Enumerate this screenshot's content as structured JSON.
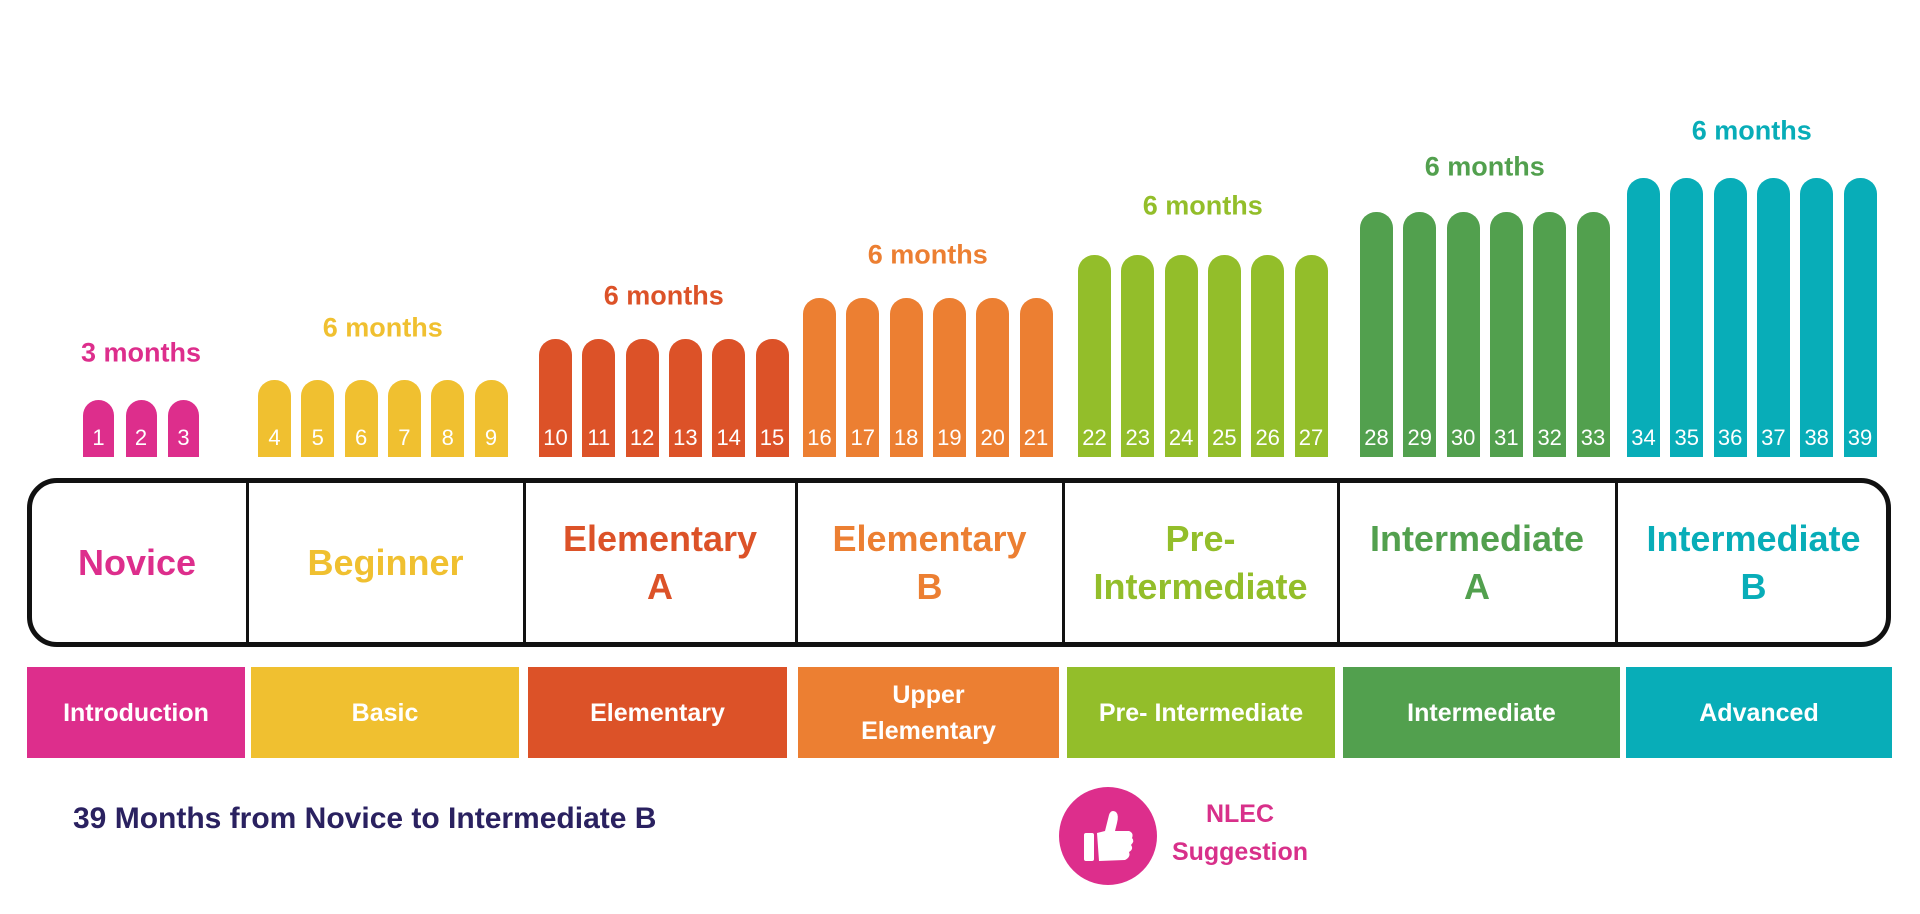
{
  "levels": [
    {
      "name": "Novice",
      "duration": "3 months",
      "stage": "Introduction",
      "lessons": [
        1,
        2,
        3
      ],
      "color": "#dd2e8c"
    },
    {
      "name": "Beginner",
      "duration": "6 months",
      "stage": "Basic",
      "lessons": [
        4,
        5,
        6,
        7,
        8,
        9
      ],
      "color": "#f0c030"
    },
    {
      "name": "Elementary\nA",
      "duration": "6 months",
      "stage": "Elementary",
      "lessons": [
        10,
        11,
        12,
        13,
        14,
        15
      ],
      "color": "#dc5228"
    },
    {
      "name": "Elementary\nB",
      "duration": "6 months",
      "stage": "Upper\nElementary",
      "lessons": [
        16,
        17,
        18,
        19,
        20,
        21
      ],
      "color": "#ec7f32"
    },
    {
      "name": "Pre-\nIntermediate",
      "duration": "6 months",
      "stage": "Pre- Intermediate",
      "lessons": [
        22,
        23,
        24,
        25,
        26,
        27
      ],
      "color": "#93be2a"
    },
    {
      "name": "Intermediate\nA",
      "duration": "6 months",
      "stage": "Intermediate",
      "lessons": [
        28,
        29,
        30,
        31,
        32,
        33
      ],
      "color": "#52a04e"
    },
    {
      "name": "Intermediate\nB",
      "duration": "6 months",
      "stage": "Advanced",
      "lessons": [
        34,
        35,
        36,
        37,
        38,
        39
      ],
      "color": "#08adb8"
    }
  ],
  "caption": "39 Months from Novice to Intermediate B",
  "suggestion": {
    "label": "NLEC\nSuggestion",
    "icon": "thumbs-up-icon",
    "color": "#dd2e8c"
  }
}
